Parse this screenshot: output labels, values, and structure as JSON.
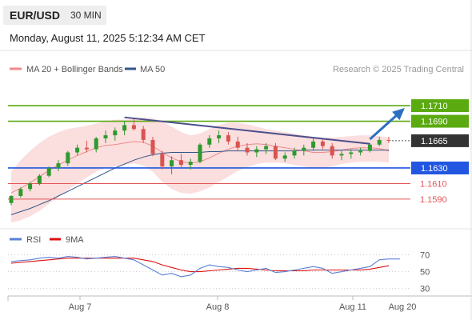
{
  "header": {
    "pair": "EUR/USD",
    "timeframe": "30 MIN",
    "timestamp": "Monday, August 11, 2025 5:12:34 AM CET"
  },
  "legend": {
    "bollinger": {
      "label": "MA 20 + Bollinger Bands",
      "color": "#f08a8a"
    },
    "ma50": {
      "label": "MA 50",
      "color": "#335588"
    },
    "source": "Research © 2025 Trading Central"
  },
  "colors": {
    "up_candle": "#2e9a2e",
    "down_candle": "#d9534f",
    "band_fill": "#fbdada",
    "resistance": "#5aaa10",
    "support": "#2156e0",
    "lower_support": "#e35555",
    "trendline": "#4a4f8c",
    "arrow": "#2c6fc2",
    "current_price": "#333333",
    "rsi": "#5a7fd6",
    "rsi_ma": "#dd1111",
    "grid": "#e6e6e6"
  },
  "chart_data": [
    {
      "type": "candlestick",
      "ylim": [
        1.1555,
        1.1745
      ],
      "x_labels": [
        "Aug 7",
        "Aug 8",
        "Aug 11",
        "Aug 20"
      ],
      "series": [
        {
          "name": "MA 20 + Bollinger Bands",
          "values": [
            1.1598,
            1.1604,
            1.1611,
            1.1619,
            1.1627,
            1.1634,
            1.164,
            1.1646,
            1.1651,
            1.1656,
            1.1659,
            1.166,
            1.1662,
            1.1664,
            1.1663,
            1.1658,
            1.165,
            1.1643,
            1.1638,
            1.1636,
            1.1638,
            1.1643,
            1.1649,
            1.1654,
            1.1658,
            1.166,
            1.1661,
            1.166,
            1.1658,
            1.1656,
            1.1654,
            1.1652,
            1.165,
            1.165,
            1.1651,
            1.1653,
            1.1655,
            1.1656,
            1.1656,
            1.1655,
            1.1652
          ],
          "upper": [
            1.1625,
            1.164,
            1.1652,
            1.1662,
            1.167,
            1.1676,
            1.168,
            1.1682,
            1.1684,
            1.1687,
            1.169,
            1.1692,
            1.1692,
            1.1693,
            1.1695,
            1.1694,
            1.169,
            1.1683,
            1.1676,
            1.1672,
            1.1674,
            1.168,
            1.1685,
            1.1688,
            1.1688,
            1.1686,
            1.1683,
            1.168,
            1.1678,
            1.1676,
            1.1674,
            1.1672,
            1.167,
            1.1669,
            1.1669,
            1.167,
            1.1671,
            1.1672,
            1.1672,
            1.1671,
            1.1669
          ],
          "lower": [
            1.156,
            1.1563,
            1.1568,
            1.1575,
            1.1584,
            1.1593,
            1.1602,
            1.161,
            1.1618,
            1.1625,
            1.163,
            1.1632,
            1.1634,
            1.1636,
            1.1633,
            1.1625,
            1.1612,
            1.1603,
            1.1598,
            1.1597,
            1.16,
            1.1605,
            1.1612,
            1.1619,
            1.1626,
            1.1631,
            1.1635,
            1.1637,
            1.1637,
            1.1636,
            1.1634,
            1.1632,
            1.163,
            1.163,
            1.1632,
            1.1635,
            1.1637,
            1.1638,
            1.1638,
            1.1638,
            1.1637
          ]
        },
        {
          "name": "MA 50",
          "values": [
            1.157,
            1.1574,
            1.1578,
            1.1583,
            1.1588,
            1.1594,
            1.16,
            1.1606,
            1.1612,
            1.1618,
            1.1624,
            1.163,
            1.1635,
            1.164,
            1.1644,
            1.1647,
            1.1649,
            1.165,
            1.165,
            1.165,
            1.165,
            1.1651,
            1.1651,
            1.1652,
            1.1652,
            1.1652,
            1.1652,
            1.1652,
            1.1652,
            1.1652,
            1.1652,
            1.1653,
            1.1653,
            1.1653,
            1.1653,
            1.1653,
            1.1653,
            1.1653,
            1.1653,
            1.1653,
            1.1653
          ]
        }
      ],
      "candles": [
        [
          1.1585,
          1.1595,
          1.1582,
          1.1594
        ],
        [
          1.1594,
          1.1605,
          1.1592,
          1.1603
        ],
        [
          1.1603,
          1.1612,
          1.16,
          1.161
        ],
        [
          1.161,
          1.1622,
          1.1608,
          1.162
        ],
        [
          1.162,
          1.1632,
          1.1618,
          1.163
        ],
        [
          1.163,
          1.164,
          1.1626,
          1.1636
        ],
        [
          1.1636,
          1.1652,
          1.1633,
          1.165
        ],
        [
          1.165,
          1.166,
          1.1646,
          1.1656
        ],
        [
          1.1656,
          1.1665,
          1.165,
          1.1654
        ],
        [
          1.1654,
          1.167,
          1.165,
          1.1668
        ],
        [
          1.1668,
          1.1678,
          1.1662,
          1.1672
        ],
        [
          1.1672,
          1.1682,
          1.1665,
          1.1678
        ],
        [
          1.1678,
          1.169,
          1.1672,
          1.1685
        ],
        [
          1.1685,
          1.1694,
          1.1678,
          1.168
        ],
        [
          1.168,
          1.1684,
          1.1662,
          1.1666
        ],
        [
          1.1666,
          1.167,
          1.1645,
          1.1648
        ],
        [
          1.1648,
          1.1652,
          1.1628,
          1.1632
        ],
        [
          1.1632,
          1.1645,
          1.1622,
          1.164
        ],
        [
          1.164,
          1.1648,
          1.163,
          1.1634
        ],
        [
          1.1634,
          1.1642,
          1.1628,
          1.1638
        ],
        [
          1.1638,
          1.1662,
          1.1636,
          1.166
        ],
        [
          1.166,
          1.1672,
          1.1656,
          1.1668
        ],
        [
          1.1668,
          1.1678,
          1.1662,
          1.1672
        ],
        [
          1.1672,
          1.1676,
          1.166,
          1.1664
        ],
        [
          1.1664,
          1.167,
          1.1652,
          1.1656
        ],
        [
          1.1656,
          1.1662,
          1.1646,
          1.165
        ],
        [
          1.165,
          1.1658,
          1.1644,
          1.1654
        ],
        [
          1.1654,
          1.1662,
          1.1648,
          1.1658
        ],
        [
          1.1658,
          1.1662,
          1.164,
          1.1642
        ],
        [
          1.1642,
          1.165,
          1.1638,
          1.1646
        ],
        [
          1.1646,
          1.1656,
          1.1642,
          1.1652
        ],
        [
          1.1652,
          1.166,
          1.1646,
          1.1656
        ],
        [
          1.1656,
          1.1668,
          1.1652,
          1.1664
        ],
        [
          1.1664,
          1.1668,
          1.1654,
          1.1658
        ],
        [
          1.1658,
          1.1662,
          1.1642,
          1.1646
        ],
        [
          1.1646,
          1.1652,
          1.164,
          1.1648
        ],
        [
          1.1648,
          1.1654,
          1.1642,
          1.165
        ],
        [
          1.165,
          1.1656,
          1.1646,
          1.1652
        ],
        [
          1.1652,
          1.1662,
          1.165,
          1.166
        ],
        [
          1.166,
          1.167,
          1.1658,
          1.1666
        ],
        [
          1.1666,
          1.167,
          1.1662,
          1.1665
        ]
      ],
      "levels": [
        {
          "label": "1.1710",
          "value": 1.171,
          "kind": "resistance"
        },
        {
          "label": "1.1690",
          "value": 1.169,
          "kind": "resistance"
        },
        {
          "label": "1.1665",
          "value": 1.1665,
          "kind": "current"
        },
        {
          "label": "1.1630",
          "value": 1.163,
          "kind": "support"
        },
        {
          "label": "1.1610",
          "value": 1.161,
          "kind": "lower_support"
        },
        {
          "label": "1.1590",
          "value": 1.159,
          "kind": "lower_support"
        }
      ],
      "trendline": [
        [
          12,
          1.1695
        ],
        [
          38,
          1.1661
        ]
      ],
      "forecast_arrow": [
        [
          38,
          1.1667
        ],
        [
          41.5,
          1.1705
        ]
      ]
    },
    {
      "type": "line",
      "indicator": "RSI",
      "ylim": [
        25,
        78
      ],
      "y_ticks": [
        "70",
        "50",
        "30"
      ],
      "series": [
        {
          "name": "RSI",
          "values": [
            62,
            63,
            64,
            66,
            67,
            66,
            68,
            67,
            65,
            66,
            67,
            68,
            66,
            64,
            58,
            52,
            46,
            48,
            44,
            46,
            54,
            58,
            56,
            55,
            52,
            50,
            52,
            54,
            49,
            50,
            52,
            54,
            56,
            54,
            48,
            50,
            52,
            54,
            56,
            64,
            65
          ]
        },
        {
          "name": "9MA",
          "values": [
            60,
            61,
            62,
            63,
            64,
            65,
            66,
            66,
            66,
            66,
            66,
            66,
            66,
            66,
            64,
            62,
            58,
            55,
            52,
            50,
            50,
            51,
            52,
            53,
            54,
            54,
            53,
            52,
            51,
            51,
            51,
            51,
            52,
            52,
            52,
            52,
            52,
            52,
            53,
            55,
            57
          ]
        }
      ]
    }
  ]
}
